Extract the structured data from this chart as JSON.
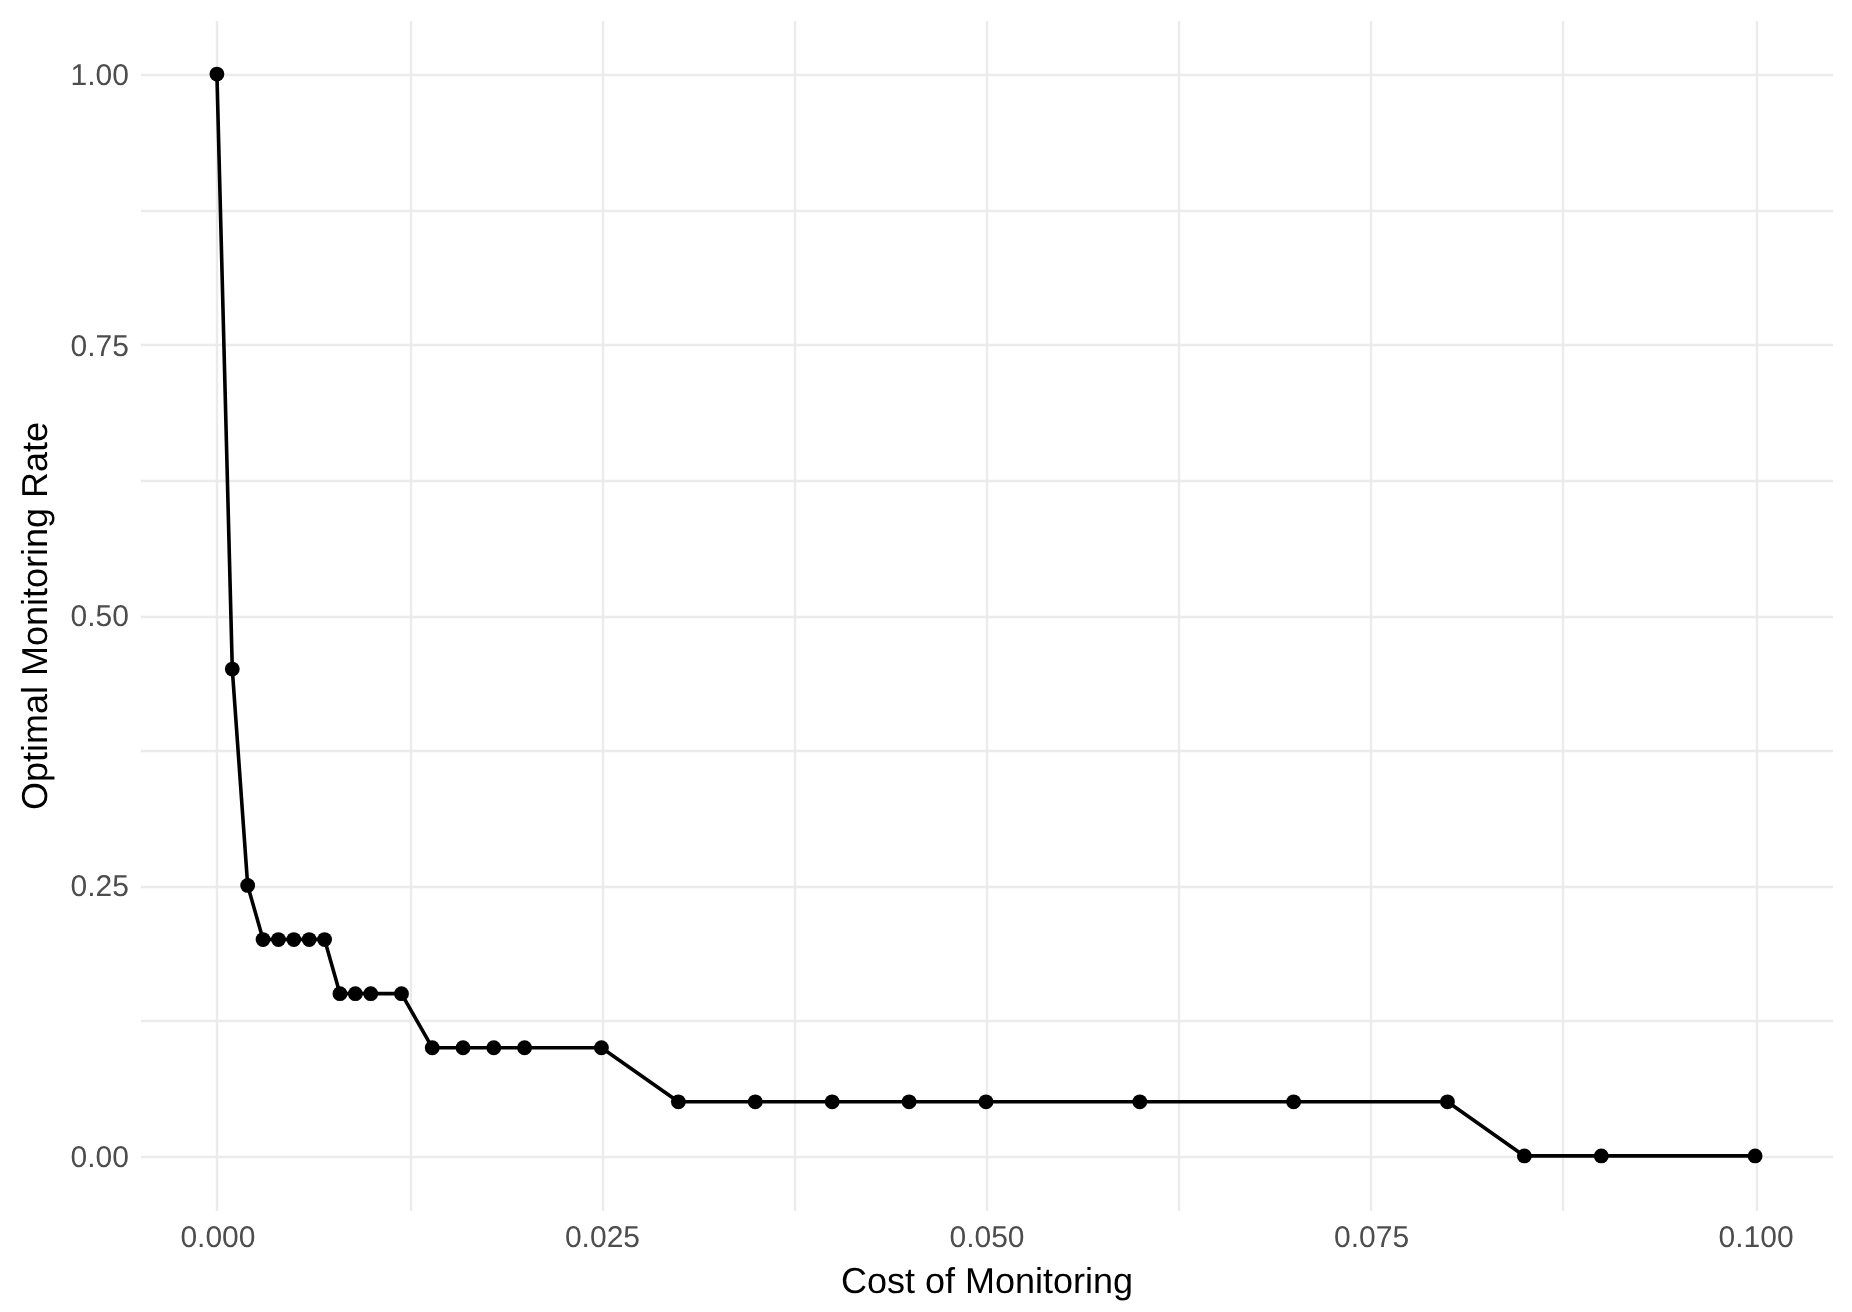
{
  "chart_data": {
    "type": "line",
    "xlabel": "Cost of Monitoring",
    "ylabel": "Optimal Monitoring Rate",
    "x": [
      0,
      0.001,
      0.002,
      0.003,
      0.004,
      0.005,
      0.006,
      0.007,
      0.008,
      0.009,
      0.01,
      0.012,
      0.014,
      0.016,
      0.018,
      0.02,
      0.025,
      0.03,
      0.035,
      0.04,
      0.045,
      0.05,
      0.06,
      0.07,
      0.08,
      0.085,
      0.09,
      0.1
    ],
    "series": [
      {
        "color": "#000000",
        "values": [
          1,
          0.45,
          0.25,
          0.2,
          0.2,
          0.2,
          0.2,
          0.2,
          0.15,
          0.15,
          0.15,
          0.15,
          0.1,
          0.1,
          0.1,
          0.1,
          0.1,
          0.05,
          0.05,
          0.05,
          0.05,
          0.05,
          0.05,
          0.05,
          0.05,
          0,
          0,
          0
        ]
      }
    ],
    "xlim": [
      -0.005,
      0.105
    ],
    "xticks": [
      {
        "value": 0,
        "label": "0.000"
      },
      {
        "value": 0.0125,
        "label": null
      },
      {
        "value": 0.025,
        "label": "0.025"
      },
      {
        "value": 0.0375,
        "label": null
      },
      {
        "value": 0.05,
        "label": "0.050"
      },
      {
        "value": 0.0625,
        "label": null
      },
      {
        "value": 0.075,
        "label": "0.075"
      },
      {
        "value": 0.0875,
        "label": null
      },
      {
        "value": 0.1,
        "label": "0.100"
      }
    ],
    "ylim": [
      -0.05,
      1.05
    ],
    "yticks": [
      {
        "value": 0,
        "label": "0.00"
      },
      {
        "value": 0.125,
        "label": null
      },
      {
        "value": 0.25,
        "label": "0.25"
      },
      {
        "value": 0.375,
        "label": null
      },
      {
        "value": 0.5,
        "label": "0.50"
      },
      {
        "value": 0.625,
        "label": null
      },
      {
        "value": 0.75,
        "label": "0.75"
      },
      {
        "value": 0.875,
        "label": null
      },
      {
        "value": 1,
        "label": "1.00"
      }
    ],
    "grid": true,
    "marker": "circle",
    "line_style": "solid"
  }
}
